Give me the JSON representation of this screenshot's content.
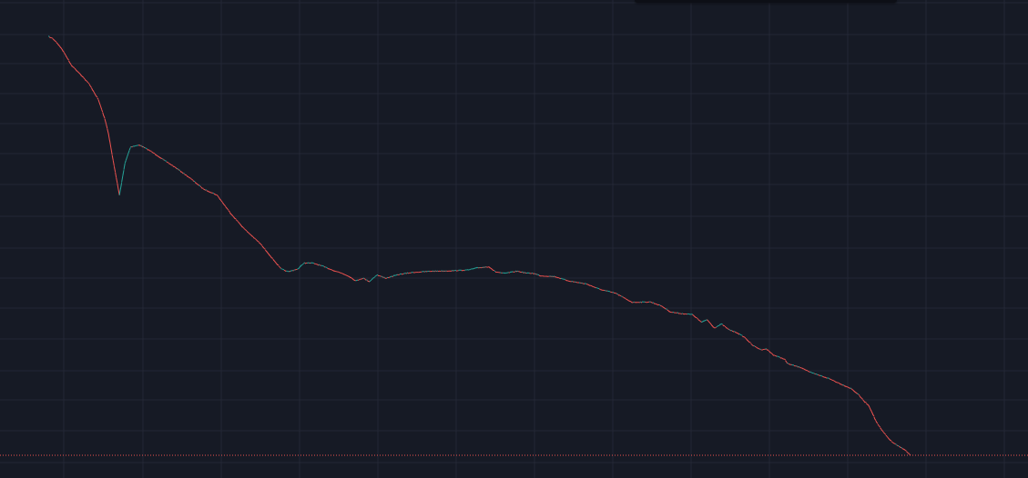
{
  "chart_data": {
    "type": "line",
    "x": [
      0,
      5,
      10,
      15,
      20,
      25,
      35,
      45,
      55,
      62,
      66,
      70,
      78,
      84,
      90,
      100,
      112,
      125,
      140,
      155,
      170,
      185,
      200,
      215,
      232,
      245,
      255,
      263,
      274,
      280,
      290,
      300,
      312,
      322,
      330,
      337,
      345,
      352,
      360,
      370,
      385,
      400,
      420,
      440,
      460,
      470,
      483,
      490,
      500,
      514,
      524,
      532,
      540,
      555,
      570,
      590,
      605,
      622,
      640,
      660,
      672,
      682,
      693,
      706,
      716,
      722,
      730,
      738,
      746,
      755,
      763,
      772,
      781,
      787,
      795,
      802,
      807,
      810,
      816,
      826,
      836,
      846,
      856,
      866,
      880,
      888,
      894,
      899,
      903,
      906,
      909,
      913,
      918,
      924,
      931,
      938,
      945
    ],
    "values": [
      41.7,
      40.6,
      38.5,
      36.0,
      33.0,
      30.0,
      27.0,
      24.0,
      20.0,
      16.0,
      13.5,
      10.5,
      6.5,
      9.5,
      11.5,
      11.8,
      11.0,
      10.0,
      9.0,
      8.0,
      7.0,
      6.5,
      5.2,
      4.3,
      3.6,
      3.0,
      2.6,
      2.5,
      2.6,
      2.8,
      2.8,
      2.7,
      2.55,
      2.45,
      2.35,
      2.22,
      2.3,
      2.2,
      2.4,
      2.3,
      2.42,
      2.48,
      2.52,
      2.53,
      2.56,
      2.63,
      2.67,
      2.5,
      2.45,
      2.52,
      2.46,
      2.45,
      2.37,
      2.35,
      2.22,
      2.13,
      1.98,
      1.88,
      1.66,
      1.67,
      1.58,
      1.45,
      1.42,
      1.4,
      1.25,
      1.3,
      1.15,
      1.22,
      1.12,
      1.07,
      1.0,
      0.88,
      0.82,
      0.83,
      0.75,
      0.72,
      0.7,
      0.65,
      0.63,
      0.6,
      0.55,
      0.52,
      0.49,
      0.45,
      0.4,
      0.35,
      0.3,
      0.27,
      0.22,
      0.18,
      0.15,
      0.12,
      0.09,
      0.06,
      0.04,
      0.025,
      0.0
    ],
    "up_color": "#26a69a",
    "down_color": "#ef5350",
    "last_price_line_color": "#ef5350",
    "grid": true,
    "log_scale": true,
    "axis_labels_visible": false,
    "legend": "none"
  },
  "colors": {
    "background": "#161a25",
    "grid": "#232735"
  }
}
